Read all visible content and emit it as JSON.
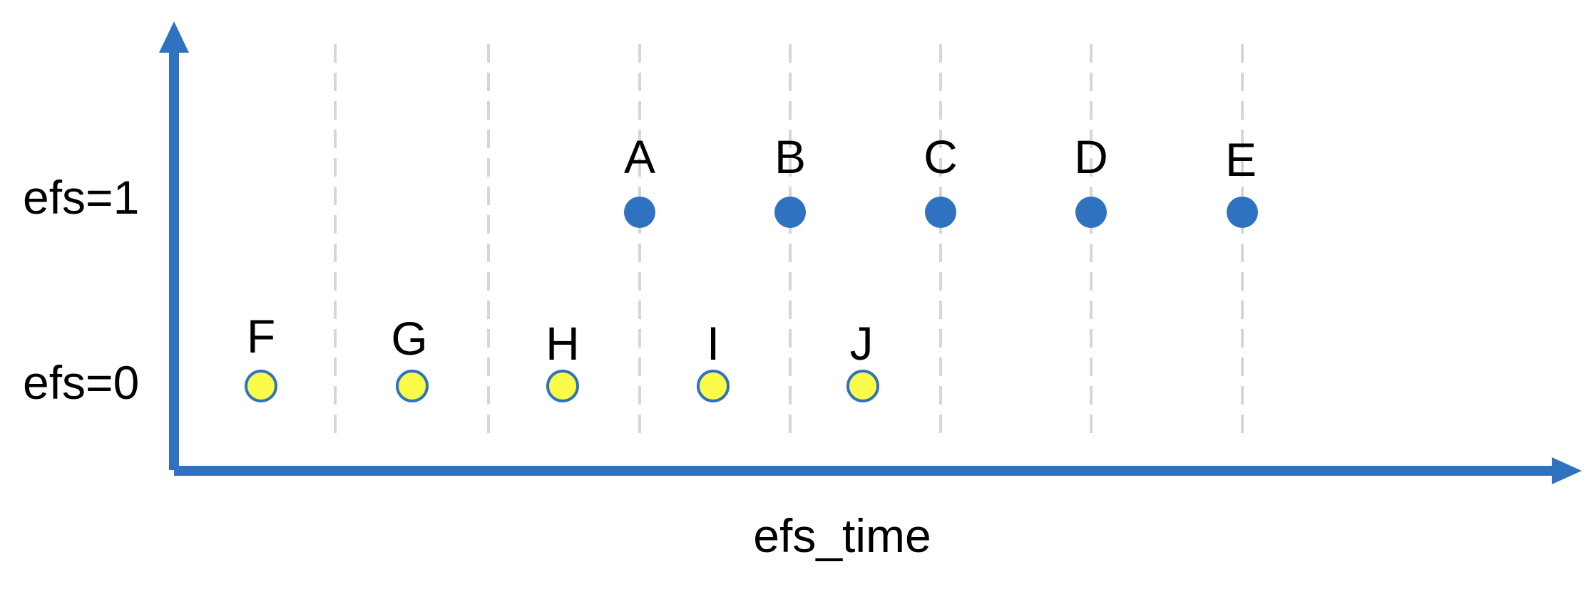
{
  "colors": {
    "axis": "#2E72C0",
    "gridline": "#D6D6D6",
    "filled_point": "#2E72C0",
    "hollow_point_fill": "#FBFB4A",
    "hollow_point_stroke": "#2E72C0",
    "text": "#000000"
  },
  "diagram": {
    "y_label_top": "efs=1",
    "y_label_bottom": "efs=0",
    "x_axis_title": "efs_time",
    "points_efs1": [
      {
        "label": "A"
      },
      {
        "label": "B"
      },
      {
        "label": "C"
      },
      {
        "label": "D"
      },
      {
        "label": "E"
      }
    ],
    "points_efs0": [
      {
        "label": "F"
      },
      {
        "label": "G"
      },
      {
        "label": "H"
      },
      {
        "label": "I"
      },
      {
        "label": "J"
      }
    ]
  }
}
